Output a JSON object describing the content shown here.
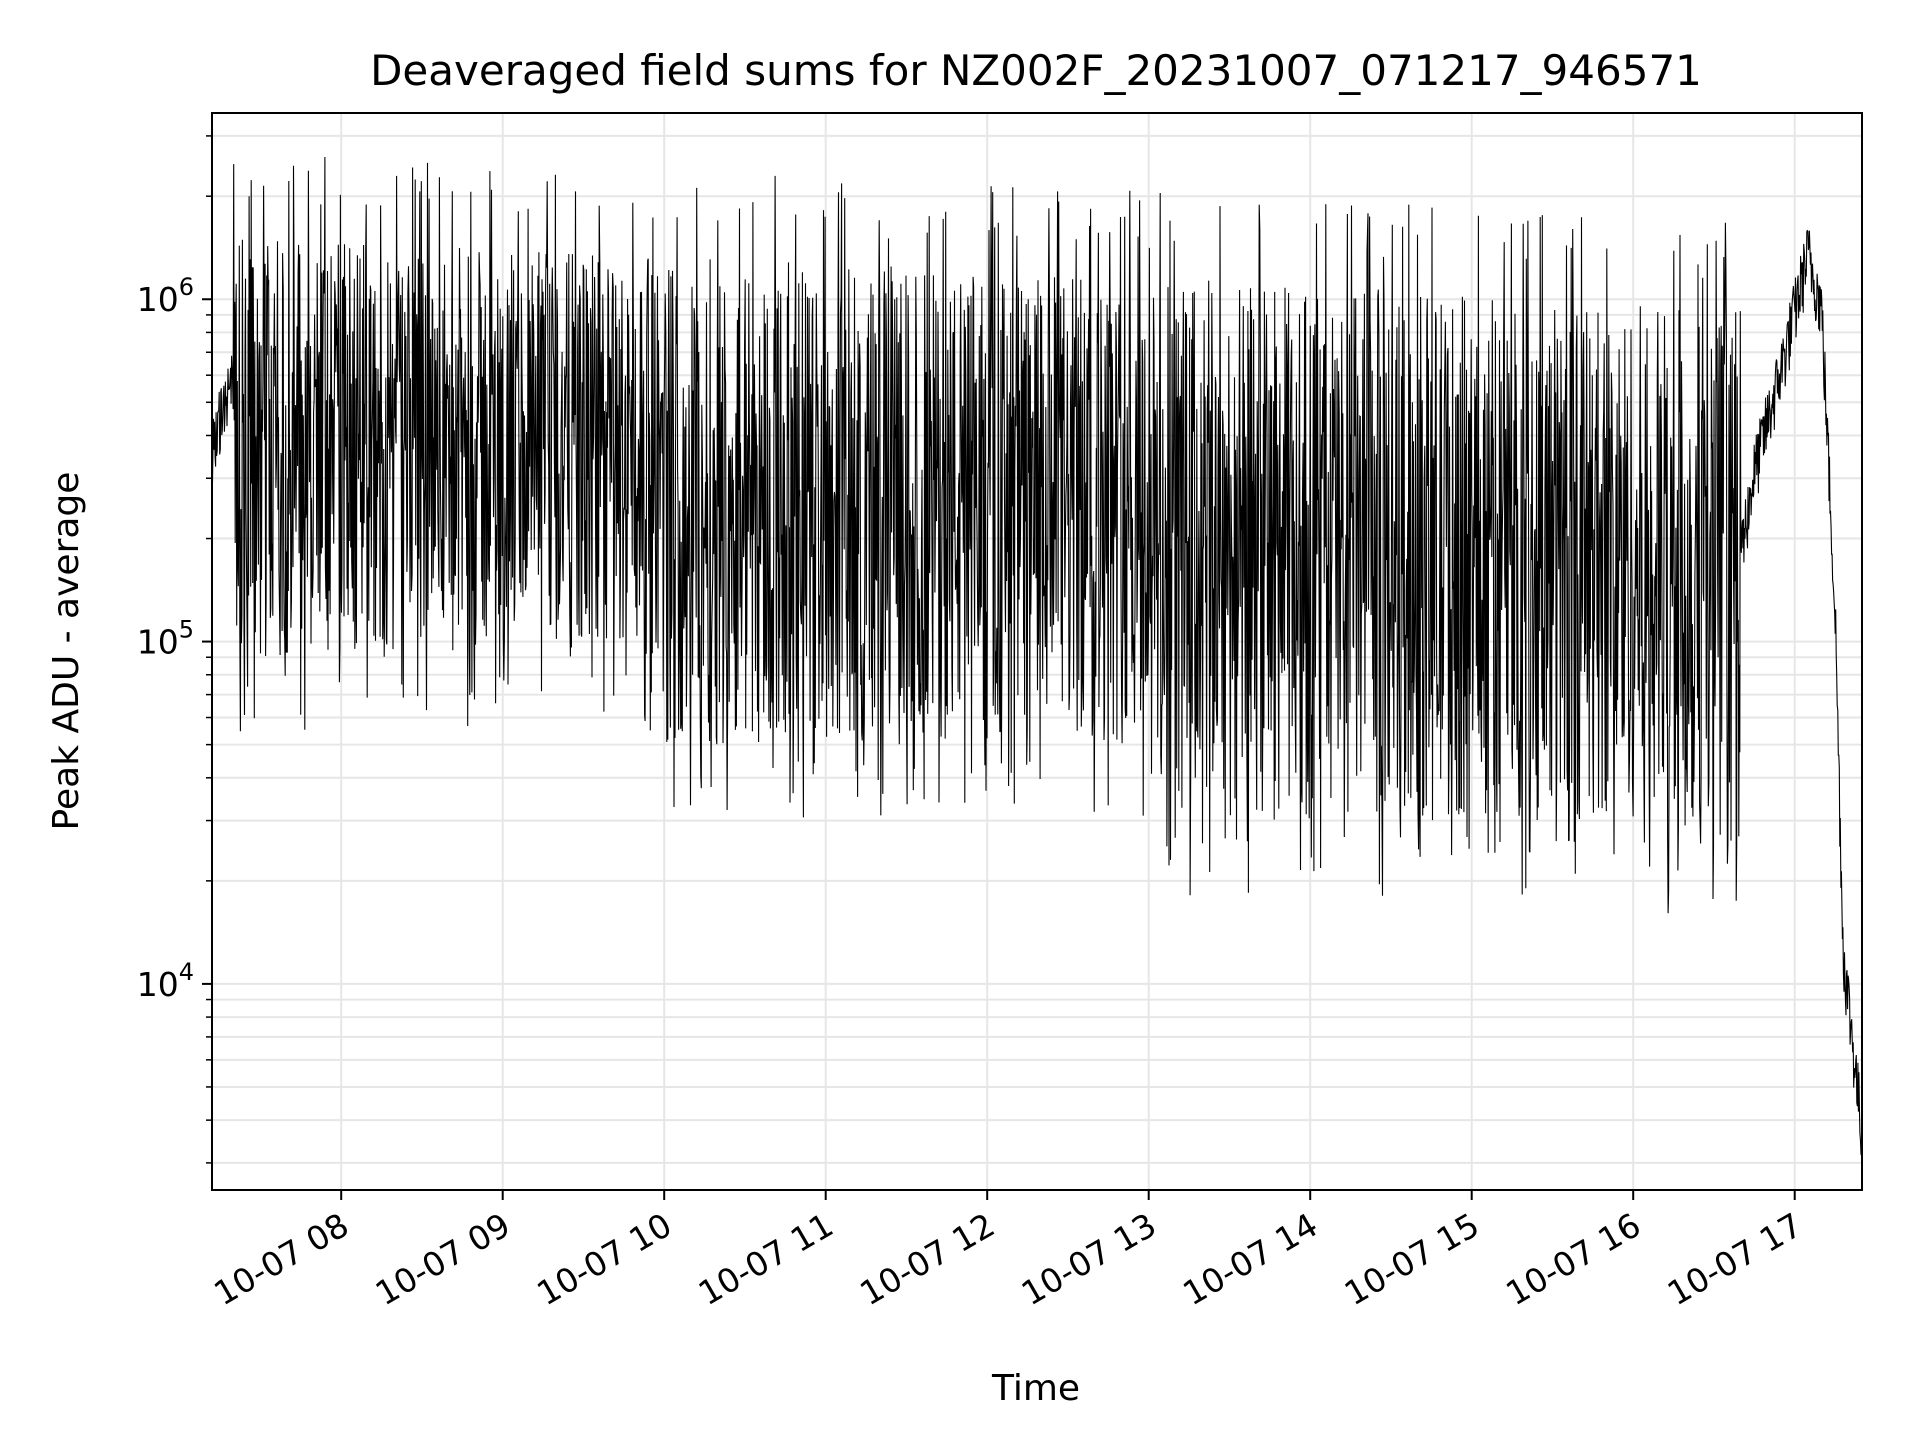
{
  "chart_data": {
    "type": "line",
    "title": "Deaveraged field sums for NZ002F_20231007_071217_946571",
    "xlabel": "Time",
    "ylabel": "Peak ADU - average",
    "y_scale": "log",
    "grid": true,
    "legend": "none",
    "line_color": "#000000",
    "grid_color": "#e6e6e6",
    "xlim": [
      "10-07 07:12",
      "10-07 17:25"
    ],
    "ylim": [
      2500,
      3500000
    ],
    "x_ticks": [
      "10-07 08",
      "10-07 09",
      "10-07 10",
      "10-07 11",
      "10-07 12",
      "10-07 13",
      "10-07 14",
      "10-07 15",
      "10-07 16",
      "10-07 17"
    ],
    "y_ticks": [
      {
        "base": "10",
        "exp": "4",
        "value": 10000
      },
      {
        "base": "10",
        "exp": "5",
        "value": 100000
      },
      {
        "base": "10",
        "exp": "6",
        "value": 1000000
      }
    ],
    "series": [
      {
        "points": [
          [
            "10-07 07:12",
            350000
          ],
          [
            "10-07 07:18",
            520000
          ],
          [
            "10-07 07:25",
            560000
          ],
          [
            "10-07 07:28",
            1500000
          ],
          [
            "10-07 07:35",
            900000
          ],
          [
            "10-07 07:42",
            200000
          ],
          [
            "10-07 07:48",
            1300000
          ],
          [
            "10-07 07:55",
            120000
          ],
          [
            "10-07 08:05",
            800000
          ],
          [
            "10-07 08:12",
            1500000
          ],
          [
            "10-07 08:20",
            180000
          ],
          [
            "10-07 08:30",
            1200000
          ],
          [
            "10-07 08:40",
            80000
          ],
          [
            "10-07 08:55",
            1300000
          ],
          [
            "10-07 09:10",
            90000
          ],
          [
            "10-07 09:20",
            1400000
          ],
          [
            "10-07 09:40",
            70000
          ],
          [
            "10-07 09:50",
            1500000
          ],
          [
            "10-07 10:10",
            60000
          ],
          [
            "10-07 10:30",
            1100000
          ],
          [
            "10-07 10:50",
            45000
          ],
          [
            "10-07 11:10",
            1000000
          ],
          [
            "10-07 11:30",
            50000
          ],
          [
            "10-07 11:50",
            900000
          ],
          [
            "10-07 12:10",
            40000
          ],
          [
            "10-07 12:30",
            800000
          ],
          [
            "10-07 12:50",
            40000
          ],
          [
            "10-07 13:10",
            900000
          ],
          [
            "10-07 13:30",
            35000
          ],
          [
            "10-07 13:50",
            800000
          ],
          [
            "10-07 14:10",
            25000
          ],
          [
            "10-07 14:30",
            700000
          ],
          [
            "10-07 14:50",
            25000
          ],
          [
            "10-07 15:10",
            650000
          ],
          [
            "10-07 15:30",
            25000
          ],
          [
            "10-07 15:50",
            600000
          ],
          [
            "10-07 16:10",
            25000
          ],
          [
            "10-07 16:30",
            60000
          ],
          [
            "10-07 16:45",
            300000
          ],
          [
            "10-07 16:55",
            600000
          ],
          [
            "10-07 17:05",
            1300000
          ],
          [
            "10-07 17:10",
            900000
          ],
          [
            "10-07 17:15",
            120000
          ],
          [
            "10-07 17:18",
            12000
          ],
          [
            "10-07 17:22",
            6000
          ],
          [
            "10-07 17:25",
            3500
          ]
        ]
      }
    ]
  }
}
